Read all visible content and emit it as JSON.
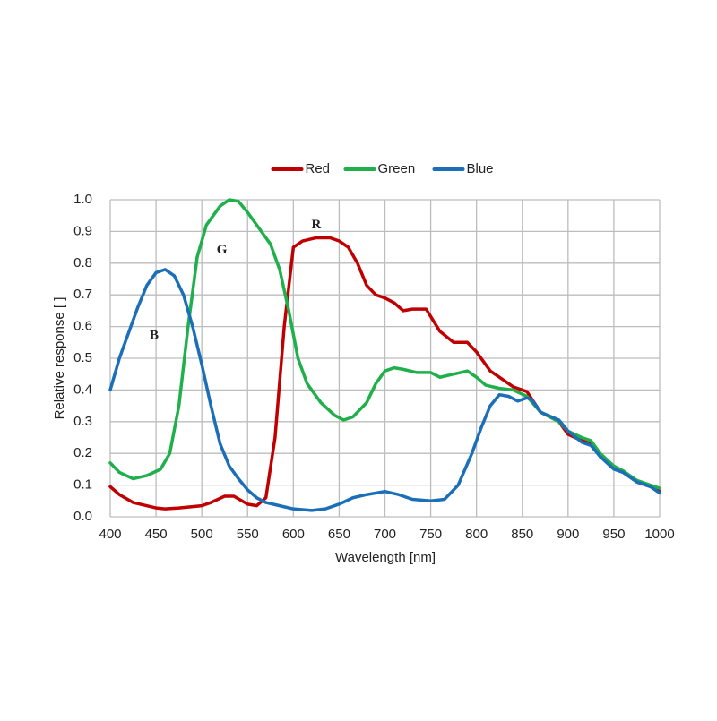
{
  "chart_data": {
    "type": "line",
    "x_label": "Wavelength [nm]",
    "y_label": "Relative response [ ]",
    "xlim": [
      400,
      1000
    ],
    "xticks": [
      400,
      450,
      500,
      550,
      600,
      650,
      700,
      750,
      800,
      850,
      900,
      950,
      1000
    ],
    "ylim": [
      0,
      1
    ],
    "yticks": [
      {
        "value": 0,
        "label": "0.0"
      },
      0.1,
      0.2,
      0.3,
      0.4,
      0.5,
      0.6,
      0.7,
      0.8,
      0.9,
      {
        "value": 1,
        "label": "1.0"
      }
    ],
    "grid": true,
    "legend": "top",
    "series": [
      {
        "name": "Red",
        "color": "#c00000",
        "x": [
          400,
          410,
          425,
          450,
          460,
          475,
          500,
          510,
          525,
          535,
          550,
          560,
          570,
          580,
          590,
          600,
          610,
          625,
          640,
          650,
          660,
          670,
          680,
          690,
          700,
          710,
          720,
          730,
          745,
          760,
          775,
          790,
          800,
          815,
          825,
          840,
          855,
          870,
          890,
          900,
          915,
          925,
          935,
          950,
          960,
          975,
          990,
          1000
        ],
        "values": [
          0.095,
          0.07,
          0.045,
          0.028,
          0.025,
          0.028,
          0.035,
          0.045,
          0.065,
          0.065,
          0.04,
          0.035,
          0.06,
          0.25,
          0.6,
          0.85,
          0.87,
          0.88,
          0.88,
          0.87,
          0.85,
          0.8,
          0.73,
          0.7,
          0.69,
          0.675,
          0.65,
          0.655,
          0.655,
          0.585,
          0.55,
          0.55,
          0.52,
          0.46,
          0.44,
          0.41,
          0.395,
          0.33,
          0.3,
          0.26,
          0.24,
          0.235,
          0.19,
          0.155,
          0.145,
          0.11,
          0.095,
          0.08
        ]
      },
      {
        "name": "Green",
        "color": "#1fb04c",
        "x": [
          400,
          410,
          425,
          440,
          455,
          465,
          475,
          485,
          495,
          505,
          520,
          530,
          540,
          550,
          565,
          575,
          585,
          595,
          605,
          615,
          630,
          645,
          655,
          665,
          680,
          690,
          700,
          710,
          720,
          735,
          750,
          760,
          775,
          790,
          800,
          810,
          825,
          840,
          855,
          870,
          890,
          900,
          915,
          925,
          935,
          950,
          960,
          975,
          990,
          1000
        ],
        "values": [
          0.17,
          0.14,
          0.12,
          0.13,
          0.15,
          0.2,
          0.35,
          0.6,
          0.82,
          0.92,
          0.98,
          1.0,
          0.995,
          0.96,
          0.9,
          0.86,
          0.78,
          0.65,
          0.5,
          0.42,
          0.36,
          0.32,
          0.305,
          0.315,
          0.36,
          0.42,
          0.46,
          0.47,
          0.465,
          0.455,
          0.455,
          0.44,
          0.45,
          0.46,
          0.44,
          0.415,
          0.405,
          0.4,
          0.38,
          0.33,
          0.3,
          0.27,
          0.25,
          0.24,
          0.2,
          0.16,
          0.145,
          0.115,
          0.1,
          0.09
        ]
      },
      {
        "name": "Blue",
        "color": "#1b6fb8",
        "x": [
          400,
          410,
          420,
          430,
          440,
          450,
          460,
          470,
          480,
          490,
          500,
          510,
          520,
          530,
          540,
          550,
          560,
          570,
          585,
          600,
          620,
          635,
          650,
          665,
          680,
          700,
          715,
          730,
          750,
          765,
          780,
          795,
          805,
          815,
          825,
          835,
          845,
          855,
          860,
          870,
          890,
          900,
          915,
          925,
          935,
          950,
          960,
          975,
          990,
          1000
        ],
        "values": [
          0.4,
          0.5,
          0.58,
          0.66,
          0.73,
          0.77,
          0.78,
          0.76,
          0.7,
          0.6,
          0.48,
          0.35,
          0.23,
          0.16,
          0.12,
          0.085,
          0.06,
          0.045,
          0.035,
          0.025,
          0.02,
          0.025,
          0.04,
          0.06,
          0.07,
          0.08,
          0.07,
          0.055,
          0.05,
          0.055,
          0.1,
          0.2,
          0.28,
          0.35,
          0.385,
          0.38,
          0.365,
          0.375,
          0.37,
          0.33,
          0.305,
          0.27,
          0.235,
          0.225,
          0.19,
          0.15,
          0.14,
          0.11,
          0.095,
          0.075
        ]
      }
    ],
    "annotations": [
      {
        "text": "R",
        "x": 625,
        "y": 0.92
      },
      {
        "text": "G",
        "x": 522,
        "y": 0.84
      },
      {
        "text": "B",
        "x": 448,
        "y": 0.57
      }
    ]
  }
}
